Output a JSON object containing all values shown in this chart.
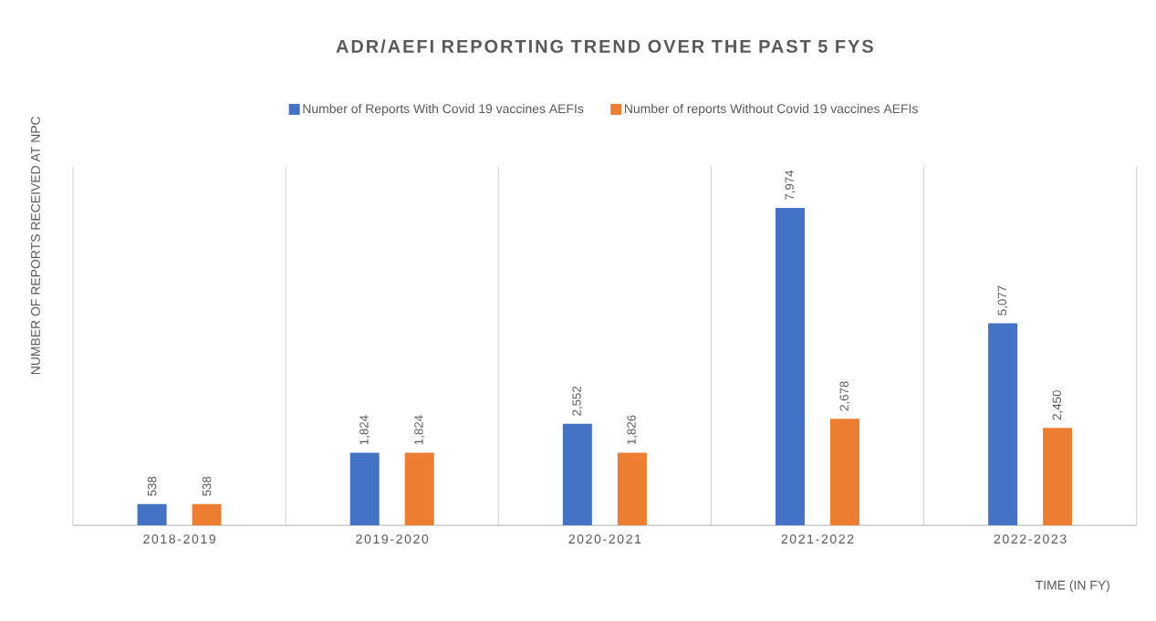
{
  "chart_data": {
    "type": "bar",
    "title": "ADR/AEFI REPORTING TREND OVER THE PAST 5 FYS",
    "xlabel": "TIME (IN FY)",
    "ylabel": "NUMBER OF REPORTS RECEIVED AT NPC",
    "categories": [
      "2018-2019",
      "2019-2020",
      "2020-2021",
      "2021-2022",
      "2022-2023"
    ],
    "series": [
      {
        "name": "Number of Reports With Covid 19 vaccines AEFIs",
        "color": "#4472c4",
        "values": [
          538,
          1824,
          2552,
          7974,
          5077
        ],
        "value_labels": [
          "538",
          "1,824",
          "2,552",
          "7,974",
          "5,077"
        ]
      },
      {
        "name": "Number of reports Without Covid 19 vaccines AEFIs",
        "color": "#ed7d31",
        "values": [
          538,
          1824,
          1826,
          2678,
          2450
        ],
        "value_labels": [
          "538",
          "1,824",
          "1,826",
          "2,678",
          "2,450"
        ]
      }
    ],
    "grid": "x",
    "legend": "top",
    "tick_labels": "x"
  }
}
